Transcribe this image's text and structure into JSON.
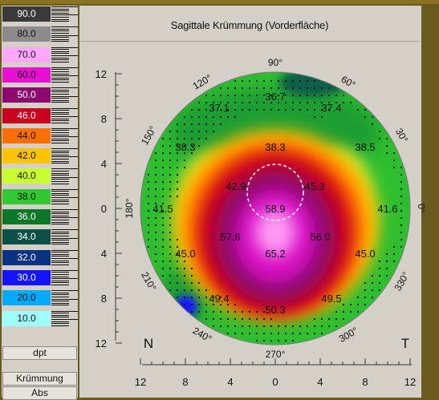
{
  "chart_data": {
    "type": "heatmap",
    "title": "Sagittale Krümmung (Vorderfläche)",
    "legend": {
      "steps": [
        {
          "value": "90.0",
          "color": "#3a3a3a"
        },
        {
          "value": "80.0",
          "color": "#8c8c8c"
        },
        {
          "value": "70.0",
          "color": "#ffa8ff"
        },
        {
          "value": "60.0",
          "color": "#e60fd2"
        },
        {
          "value": "50.0",
          "color": "#8c0a6e"
        },
        {
          "value": "46.0",
          "color": "#c8001e"
        },
        {
          "value": "44.0",
          "color": "#ff6e00"
        },
        {
          "value": "42.0",
          "color": "#ffc300"
        },
        {
          "value": "40.0",
          "color": "#c8ff32"
        },
        {
          "value": "38.0",
          "color": "#32c832"
        },
        {
          "value": "36.0",
          "color": "#0a7828"
        },
        {
          "value": "34.0",
          "color": "#0a5046"
        },
        {
          "value": "32.0",
          "color": "#0a3282"
        },
        {
          "value": "30.0",
          "color": "#1414ff"
        },
        {
          "value": "20.0",
          "color": "#00aaff"
        },
        {
          "value": "10.0",
          "color": "#a0ffff"
        }
      ],
      "unit": "dpt",
      "mode": "Krümmung",
      "scale": "Abs"
    },
    "x_ticks": [
      "12",
      "8",
      "4",
      "0",
      "4",
      "8",
      "12"
    ],
    "y_ticks": [
      "12",
      "8",
      "4",
      "0",
      "4",
      "8",
      "12"
    ],
    "angle_labels": [
      "90°",
      "60°",
      "30°",
      "0°",
      "330°",
      "300°",
      "270°",
      "240°",
      "210°",
      "180°",
      "150°",
      "120°"
    ],
    "side_labels": {
      "left": "N",
      "right": "T"
    },
    "values": [
      {
        "x": -5,
        "y": 9,
        "label": "37.1"
      },
      {
        "x": 0,
        "y": 10,
        "label": "36.7"
      },
      {
        "x": 5,
        "y": 9,
        "label": "37.4"
      },
      {
        "x": -8,
        "y": 5.5,
        "label": "38.3"
      },
      {
        "x": 0,
        "y": 5.5,
        "label": "38.3"
      },
      {
        "x": 8,
        "y": 5.5,
        "label": "38.5"
      },
      {
        "x": -3.5,
        "y": 2,
        "label": "42.9"
      },
      {
        "x": 3.5,
        "y": 2,
        "label": "45.3"
      },
      {
        "x": -10,
        "y": 0,
        "label": "41.5"
      },
      {
        "x": 10,
        "y": 0,
        "label": "41.6"
      },
      {
        "x": 0,
        "y": 0,
        "label": "58.9"
      },
      {
        "x": -4,
        "y": -2.5,
        "label": "57.6"
      },
      {
        "x": 4,
        "y": -2.5,
        "label": "56.0"
      },
      {
        "x": 0,
        "y": -4,
        "label": "65.2"
      },
      {
        "x": -8,
        "y": -4,
        "label": "45.0"
      },
      {
        "x": 8,
        "y": -4,
        "label": "45.0"
      },
      {
        "x": -5,
        "y": -8,
        "label": "49.4"
      },
      {
        "x": 5,
        "y": -8,
        "label": "49.5"
      },
      {
        "x": 0,
        "y": -9,
        "label": "50.3"
      }
    ]
  }
}
